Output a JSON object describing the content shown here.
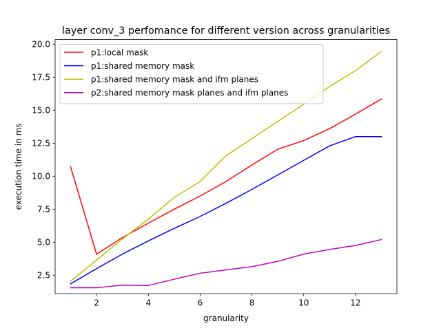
{
  "chart_data": {
    "type": "line",
    "title": "layer conv_3 perfomance for different version across granularities",
    "xlabel": "granularity",
    "ylabel": "execution time in ms",
    "xlim": [
      0.4,
      13.6
    ],
    "ylim": [
      1.1,
      20.35
    ],
    "xticks": [
      2,
      4,
      6,
      8,
      10,
      12
    ],
    "yticks": [
      2.5,
      5.0,
      7.5,
      10.0,
      12.5,
      15.0,
      17.5,
      20.0
    ],
    "ytick_labels": [
      "2.5",
      "5.0",
      "7.5",
      "10.0",
      "12.5",
      "15.0",
      "17.5",
      "20.0"
    ],
    "grid": false,
    "legend_position": "upper-left",
    "x": [
      1,
      2,
      3,
      4,
      5,
      6,
      7,
      8,
      9,
      10,
      11,
      12,
      13
    ],
    "series": [
      {
        "name": "p1:local mask",
        "color": "#ff0000",
        "values": [
          10.7,
          4.1,
          5.35,
          6.45,
          7.5,
          8.5,
          9.6,
          10.85,
          12.05,
          12.7,
          13.6,
          14.7,
          15.85
        ]
      },
      {
        "name": "p1:shared memory mask",
        "color": "#0000ff",
        "values": [
          1.85,
          3.0,
          4.1,
          5.1,
          6.05,
          6.95,
          7.95,
          9.0,
          10.1,
          11.2,
          12.3,
          13.0,
          13.0
        ]
      },
      {
        "name": "p1:shared memory mask and ifm planes",
        "color": "#bfbf00",
        "values": [
          2.05,
          3.65,
          5.25,
          6.75,
          8.4,
          9.6,
          11.55,
          12.85,
          14.15,
          15.45,
          16.8,
          18.0,
          19.45
        ]
      },
      {
        "name": "p2:shared memory mask planes and ifm planes",
        "color": "#bf00bf",
        "values": [
          1.55,
          1.55,
          1.75,
          1.72,
          2.2,
          2.65,
          2.9,
          3.15,
          3.55,
          4.1,
          4.45,
          4.75,
          5.2
        ]
      }
    ]
  }
}
